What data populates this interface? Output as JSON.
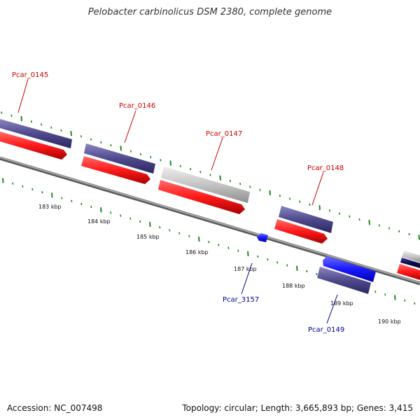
{
  "title": "Pelobacter carbinolicus DSM 2380, complete genome",
  "footer": {
    "accession": "Accession: NC_007498",
    "summary": "Topology: circular; Length: 3,665,893 bp; Genes: 3,415"
  },
  "colors": {
    "red_feature": "#ff1a1a",
    "purple_feature": "#4f4a8c",
    "gray_feature": "#c4c4c4",
    "blue_feature": "#1a1aff",
    "navy_feature": "#0c0c55",
    "backbone": "#808080",
    "ticks": "#1a8c1a",
    "label_red": "#cc0000",
    "label_blue": "#000099"
  },
  "tick_labels": [
    {
      "text": "183 kbp",
      "kbp": 183
    },
    {
      "text": "184 kbp",
      "kbp": 184
    },
    {
      "text": "185 kbp",
      "kbp": 185
    },
    {
      "text": "186 kbp",
      "kbp": 186
    },
    {
      "text": "187 kbp",
      "kbp": 187
    },
    {
      "text": "188 kbp",
      "kbp": 188
    },
    {
      "text": "189 kbp",
      "kbp": 189
    },
    {
      "text": "190 kbp",
      "kbp": 190
    }
  ],
  "genes": [
    {
      "label": "Pcar_0145",
      "strand": "forward"
    },
    {
      "label": "Pcar_0146",
      "strand": "forward"
    },
    {
      "label": "Pcar_0147",
      "strand": "forward"
    },
    {
      "label": "Pcar_0148",
      "strand": "forward"
    },
    {
      "label": "Pcar_3157",
      "strand": "reverse"
    },
    {
      "label": "Pcar_0149",
      "strand": "reverse"
    }
  ]
}
